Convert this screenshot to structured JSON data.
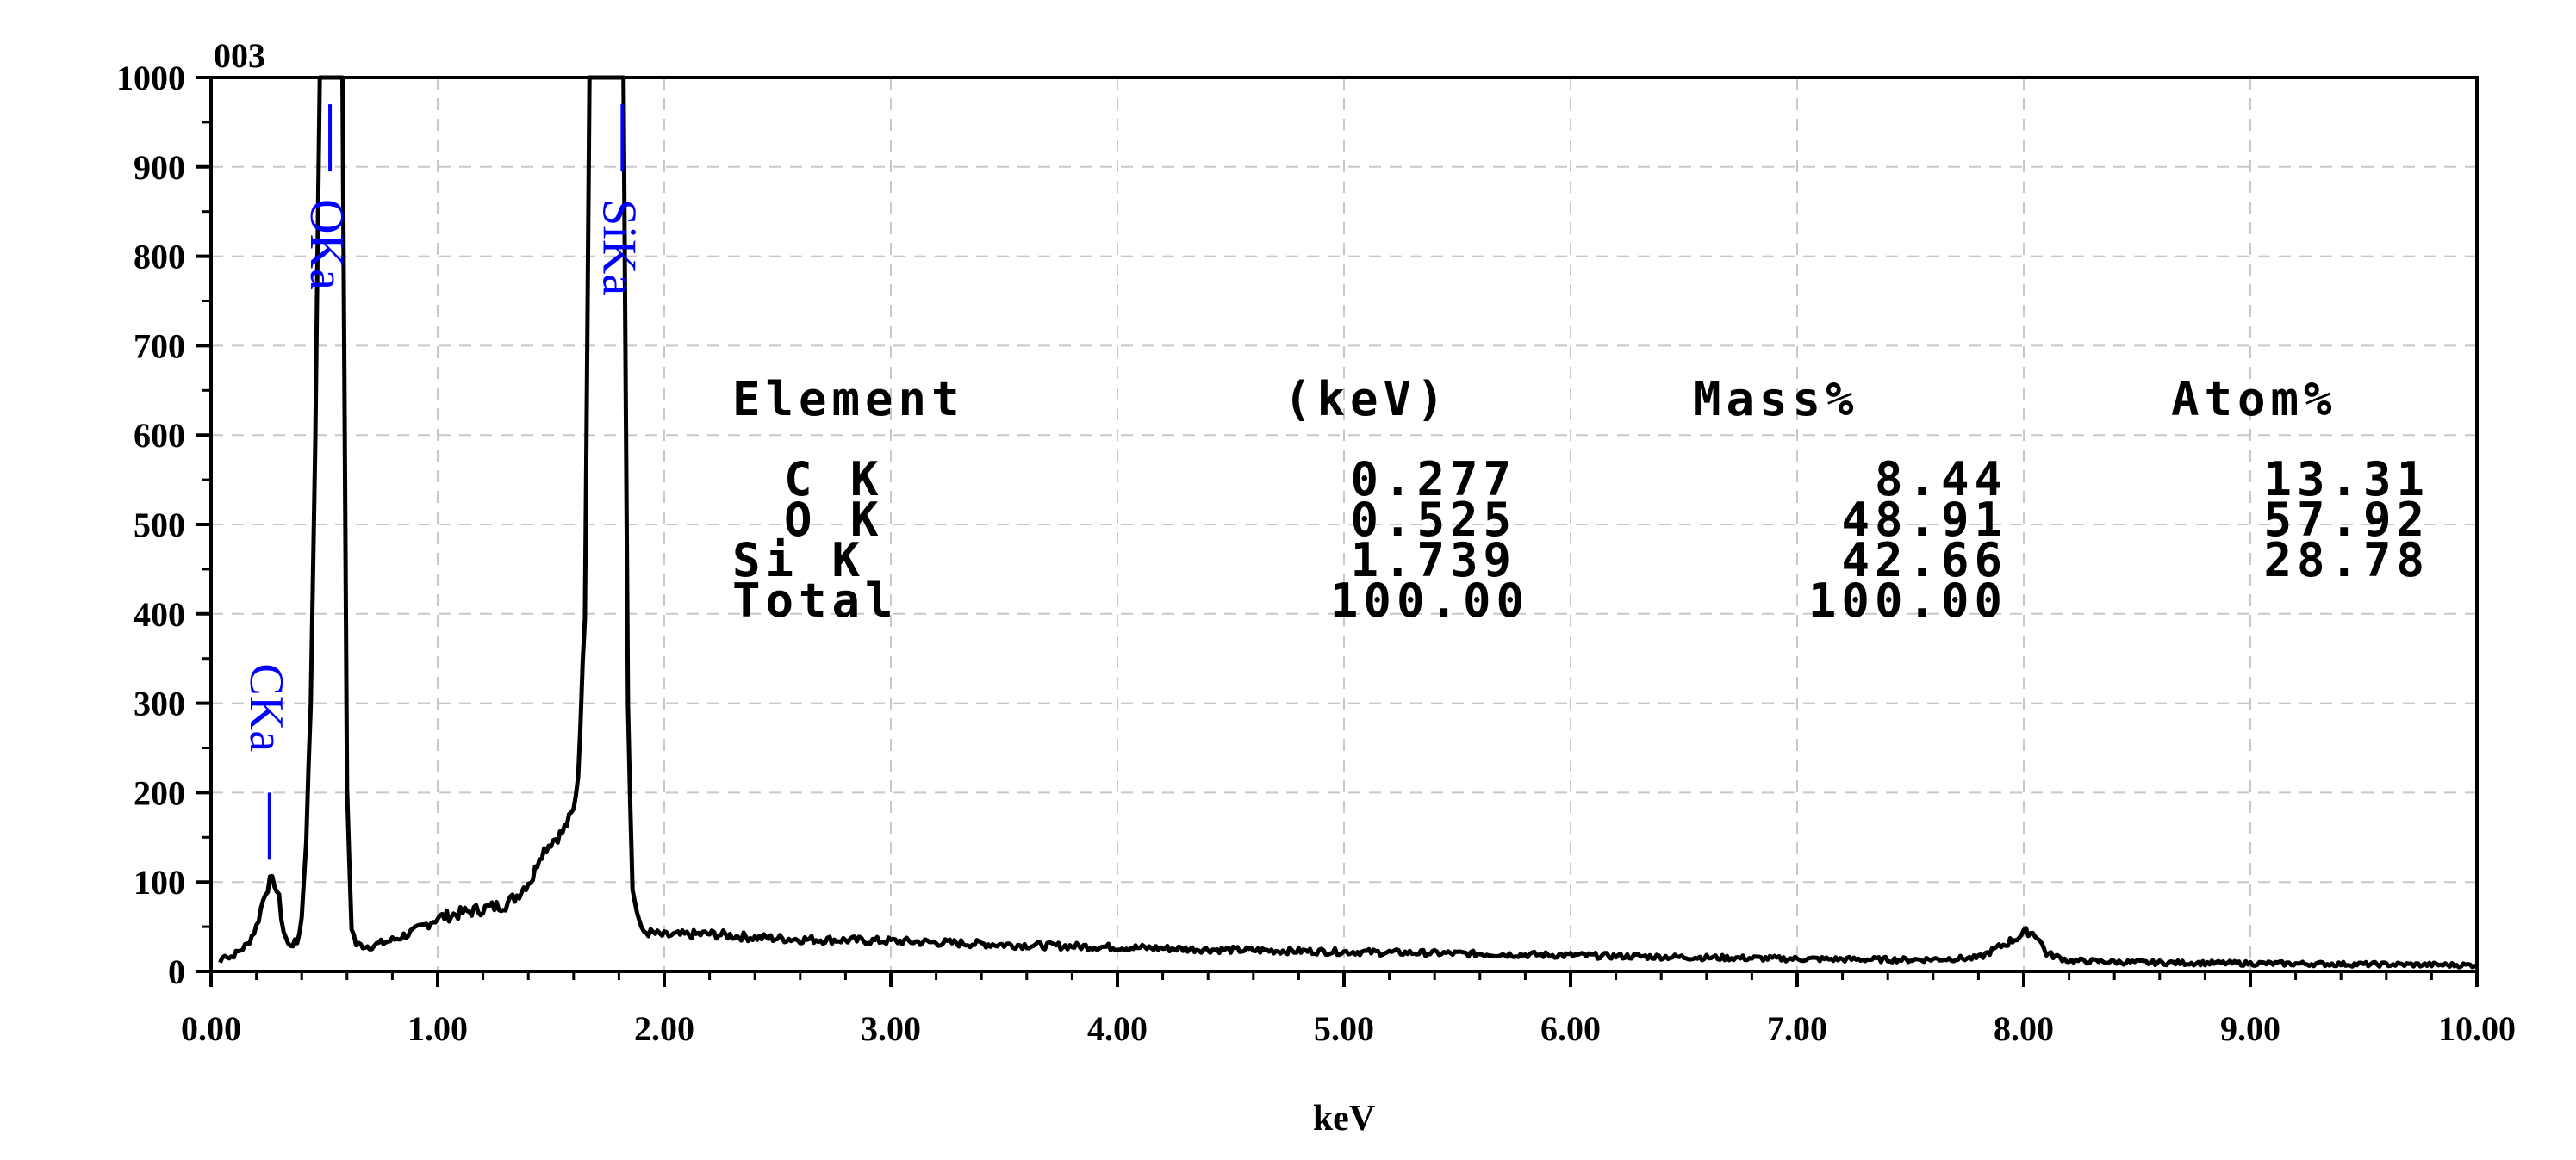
{
  "chart_data": {
    "type": "line",
    "title": "003",
    "xlabel": "keV",
    "ylabel": "",
    "xlim": [
      0,
      10
    ],
    "ylim": [
      0,
      1000
    ],
    "x_ticks": [
      "0.00",
      "1.00",
      "2.00",
      "3.00",
      "4.00",
      "5.00",
      "6.00",
      "7.00",
      "8.00",
      "9.00",
      "10.00"
    ],
    "y_ticks": [
      "0",
      "100",
      "200",
      "300",
      "400",
      "500",
      "600",
      "700",
      "800",
      "900",
      "1000"
    ],
    "grid": true,
    "series": [
      {
        "x": [
          0.04,
          0.06,
          0.08,
          0.12,
          0.16,
          0.2,
          0.24,
          0.26,
          0.28,
          0.3,
          0.32,
          0.34,
          0.38,
          0.4,
          0.42,
          0.44,
          0.46,
          0.48,
          0.5,
          0.52,
          0.56,
          0.58,
          0.6,
          0.62,
          0.64,
          0.7,
          0.8,
          0.9,
          1.0,
          1.1,
          1.2,
          1.3,
          1.35,
          1.4,
          1.42,
          1.45,
          1.5,
          1.55,
          1.6,
          1.62,
          1.65,
          1.67,
          1.69,
          1.8,
          1.82,
          1.84,
          1.86,
          1.9,
          2.0,
          2.2,
          2.4,
          2.6,
          3.0,
          3.5,
          4.0,
          4.5,
          5.0,
          5.5,
          6.0,
          6.5,
          7.0,
          7.5,
          7.8,
          7.95,
          8.02,
          8.06,
          8.1,
          8.2,
          8.5,
          9.0,
          9.5,
          10.0
        ],
        "y": [
          10,
          20,
          15,
          22,
          30,
          50,
          90,
          100,
          100,
          80,
          45,
          30,
          32,
          60,
          150,
          300,
          600,
          1000,
          1000,
          1000,
          1000,
          1000,
          200,
          50,
          30,
          28,
          35,
          45,
          60,
          65,
          70,
          75,
          85,
          100,
          105,
          130,
          145,
          155,
          180,
          220,
          400,
          1000,
          1000,
          1000,
          1000,
          300,
          90,
          45,
          40,
          42,
          38,
          36,
          34,
          30,
          27,
          24,
          22,
          20,
          18,
          16,
          14,
          13,
          15,
          35,
          45,
          40,
          20,
          12,
          10,
          9,
          8,
          7
        ]
      }
    ],
    "peak_labels": [
      "CKa",
      "OKa",
      "SiKa"
    ],
    "peak_positions": [
      0.277,
      0.525,
      1.739
    ],
    "peak_marker_heights": [
      200,
      970,
      970
    ],
    "table": {
      "headers": [
        "Element",
        "(keV)",
        "Mass%",
        "Atom%"
      ],
      "rows": [
        [
          "C K",
          "0.277",
          "8.44",
          "13.31"
        ],
        [
          "O K",
          "0.525",
          "48.91",
          "57.92"
        ],
        [
          "Si K",
          "1.739",
          "42.66",
          "28.78"
        ],
        [
          "Total",
          "",
          "100.00",
          "100.00"
        ]
      ]
    },
    "colors": {
      "spectrum": "#000000",
      "peak_label": "#0000ff",
      "baseline": "#b0a000",
      "grid": "#c8c8c8"
    }
  }
}
